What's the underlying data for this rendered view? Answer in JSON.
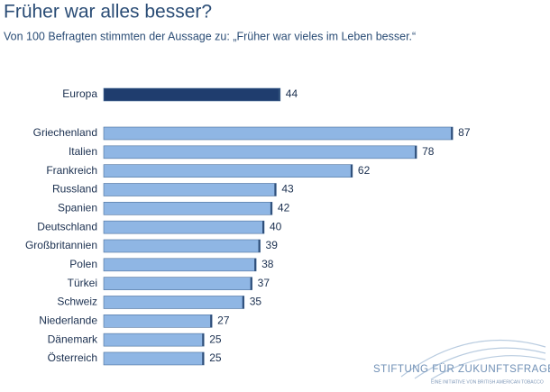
{
  "chart_data": {
    "type": "bar",
    "orientation": "horizontal",
    "title": "Früher war alles besser?",
    "subtitle": "Von 100 Befragten stimmten der Aussage zu: „Früher war vieles im Leben besser.“",
    "categories": [
      "Europa",
      "Griechenland",
      "Italien",
      "Frankreich",
      "Russland",
      "Spanien",
      "Deutschland",
      "Großbritannien",
      "Polen",
      "Türkei",
      "Schweiz",
      "Niederlande",
      "Dänemark",
      "Österreich"
    ],
    "values": [
      44,
      87,
      78,
      62,
      43,
      42,
      40,
      39,
      38,
      37,
      35,
      27,
      25,
      25
    ],
    "colors": [
      "#1f3d6e",
      "#8fb6e4",
      "#8fb6e4",
      "#8fb6e4",
      "#8fb6e4",
      "#8fb6e4",
      "#8fb6e4",
      "#8fb6e4",
      "#8fb6e4",
      "#8fb6e4",
      "#8fb6e4",
      "#8fb6e4",
      "#8fb6e4",
      "#8fb6e4"
    ]
  },
  "footer": {
    "logo": "STIFTUNG FÜR ZUKUNFTSFRAGEN",
    "tagline": "EINE INITIATIVE VON BRITISH AMERICAN TOBACCO"
  }
}
